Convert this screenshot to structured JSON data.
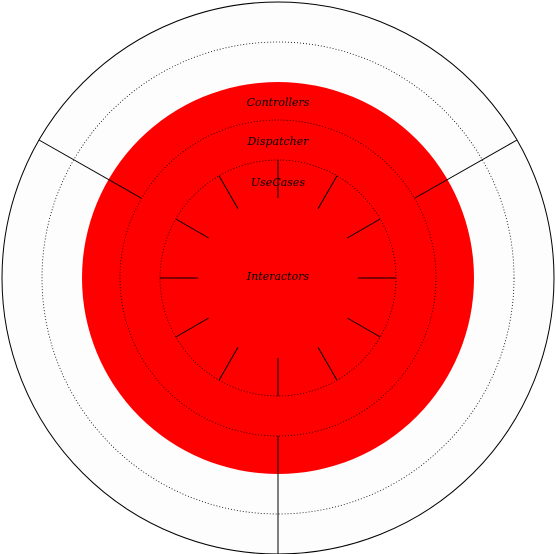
{
  "diagram": {
    "layers": {
      "controllers": "Controllers",
      "dispatcher": "Dispatcher",
      "usecases": "UseCases",
      "interactors": "Interactors"
    },
    "colors": {
      "background": "#ffffff",
      "outer_fill": "#fdfdfd",
      "core_fill": "#ff0000",
      "stroke": "#000000"
    }
  }
}
